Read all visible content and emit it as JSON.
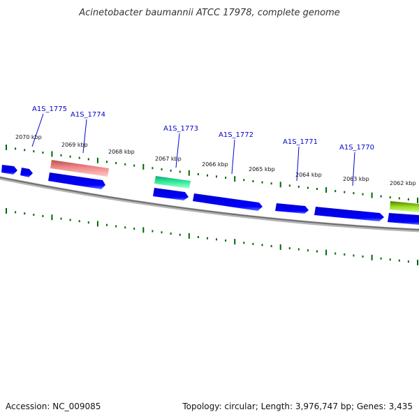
{
  "title": "Acinetobacter baumannii ATCC 17978, complete genome",
  "footer": {
    "accession": "Accession: NC_009085",
    "summary": "Topology: circular; Length: 3,976,747 bp; Genes: 3,435"
  },
  "colors": {
    "cds": "#0000ee",
    "cds_light": "#5566ff",
    "backbone": "#777777",
    "tick": "#006600",
    "label_line": "#0000cc",
    "rrna": "#ee7777",
    "trna": "#22dd99",
    "other_feature": "#88cc22"
  },
  "scale_labels": [
    "2070 kbp",
    "2069 kbp",
    "2068 kbp",
    "2067 kbp",
    "2066 kbp",
    "2065 kbp",
    "2064 kbp",
    "2063 kbp",
    "2062 kbp"
  ],
  "gene_labels": [
    "A1S_1775",
    "A1S_1774",
    "A1S_1773",
    "A1S_1772",
    "A1S_1771",
    "A1S_1770"
  ]
}
